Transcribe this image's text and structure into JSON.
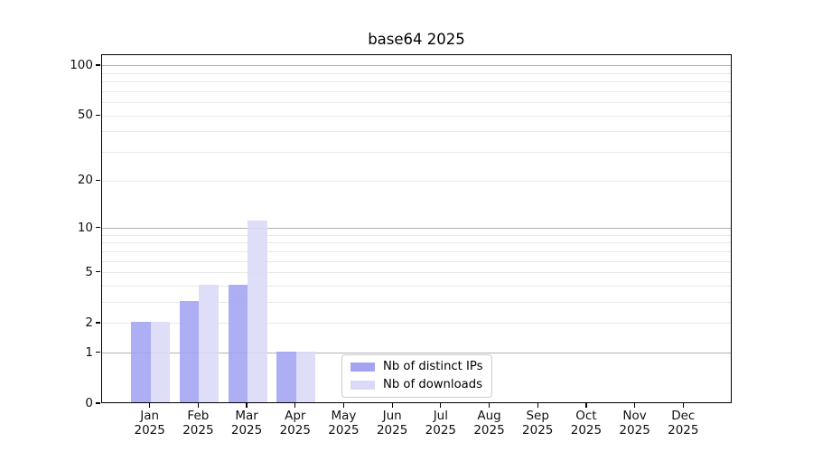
{
  "chart_data": {
    "type": "bar",
    "title": "base64 2025",
    "year": "2025",
    "categories": [
      "Jan",
      "Feb",
      "Mar",
      "Apr",
      "May",
      "Jun",
      "Jul",
      "Aug",
      "Sep",
      "Oct",
      "Nov",
      "Dec"
    ],
    "series": [
      {
        "name": "Nb of distinct IPs",
        "color": "#a3a3f2",
        "values": [
          2,
          3,
          4,
          1,
          0,
          0,
          0,
          0,
          0,
          0,
          0,
          0
        ]
      },
      {
        "name": "Nb of downloads",
        "color": "#d9d9f8",
        "values": [
          2,
          4,
          11,
          1,
          0,
          0,
          0,
          0,
          0,
          0,
          0,
          0
        ]
      }
    ],
    "yscale": "log1p",
    "ylim": [
      0,
      116
    ],
    "ytick_values": [
      0,
      1,
      2,
      5,
      10,
      20,
      50,
      100
    ],
    "ytick_labels": [
      "0",
      "1",
      "2",
      "5",
      "10",
      "20",
      "50",
      "100"
    ],
    "grid": {
      "major_values": [
        1,
        10,
        100
      ],
      "minor_values": [
        2,
        3,
        4,
        5,
        6,
        7,
        8,
        9,
        20,
        30,
        40,
        50,
        60,
        70,
        80,
        90
      ],
      "major_color": "#b2b2b2",
      "minor_color": "#e9e9e9"
    },
    "legend_position": "inside-bottom-center",
    "background_color": "#ffffff",
    "axis_color": "#000000"
  }
}
